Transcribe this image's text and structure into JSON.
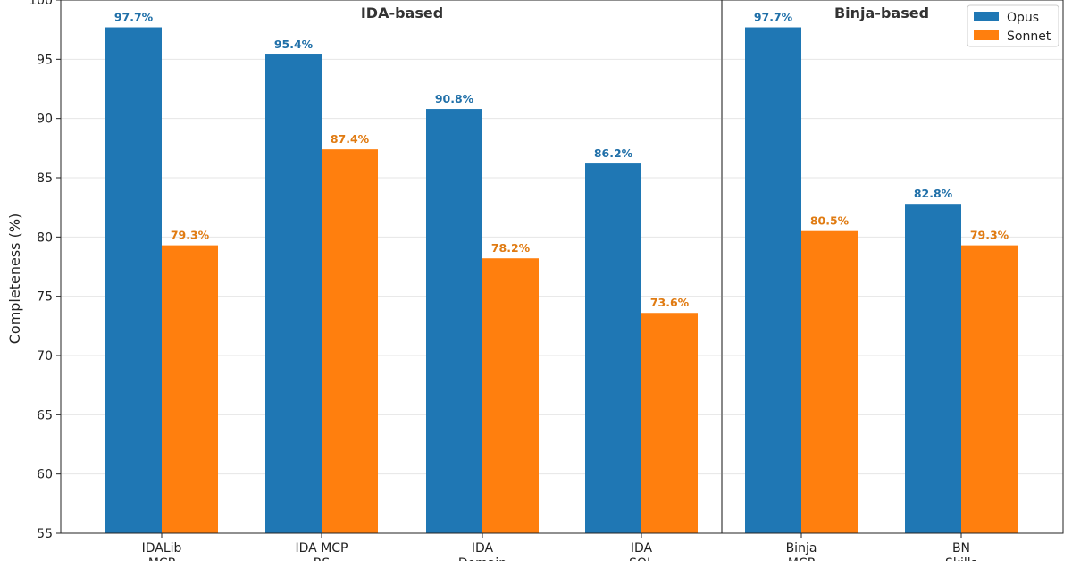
{
  "chart_data": {
    "type": "bar",
    "title": "",
    "xlabel": "",
    "ylabel": "Completeness (%)",
    "ylim": [
      55,
      100
    ],
    "yticks": [
      55,
      60,
      65,
      70,
      75,
      80,
      85,
      90,
      95,
      100
    ],
    "grid": "y",
    "legend_position": "top-right",
    "categories": [
      [
        "IDALib",
        "MCP"
      ],
      [
        "IDA MCP",
        "RS"
      ],
      [
        "IDA",
        "Domain"
      ],
      [
        "IDA",
        "SQL"
      ],
      [
        "Binja",
        "MCP"
      ],
      [
        "BN",
        "Skills"
      ]
    ],
    "groups": [
      {
        "label": "IDA-based",
        "categories": [
          0,
          1,
          2,
          3
        ]
      },
      {
        "label": "Binja-based",
        "categories": [
          4,
          5
        ]
      }
    ],
    "series": [
      {
        "name": "Opus",
        "color": "#1f77b4",
        "label_color": "#1f6fa8",
        "values": [
          97.7,
          95.4,
          90.8,
          86.2,
          97.7,
          82.8
        ],
        "labels": [
          "97.7%",
          "95.4%",
          "90.8%",
          "86.2%",
          "97.7%",
          "82.8%"
        ]
      },
      {
        "name": "Sonnet",
        "color": "#ff7f0e",
        "label_color": "#e07b12",
        "values": [
          79.3,
          87.4,
          78.2,
          73.6,
          80.5,
          79.3
        ],
        "labels": [
          "79.3%",
          "87.4%",
          "78.2%",
          "73.6%",
          "80.5%",
          "79.3%"
        ]
      }
    ]
  }
}
